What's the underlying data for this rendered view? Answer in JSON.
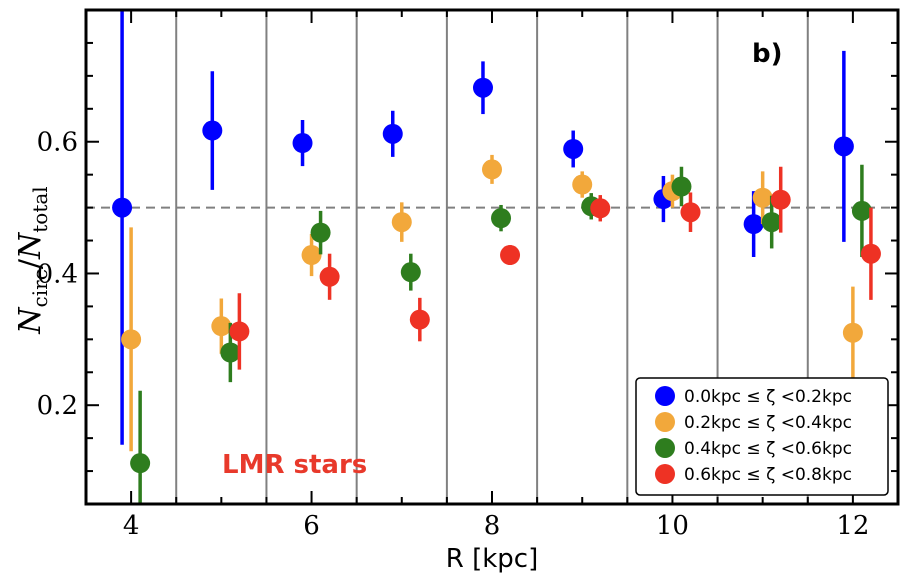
{
  "chart_data": {
    "type": "scatter",
    "panel_label": "b)",
    "xlabel": "R [kpc]",
    "ylabel_main": "N",
    "ylabel_num_sub": "circ",
    "ylabel_sep": "/",
    "ylabel_den_sub": "total",
    "annotation": "LMR stars",
    "annotation_color": "#e8392b",
    "xlim": [
      3.5,
      12.5
    ],
    "ylim": [
      0.05,
      0.8
    ],
    "x_ticks": [
      4,
      6,
      8,
      10,
      12
    ],
    "x_tick_labels": [
      "4",
      "6",
      "8",
      "10",
      "12"
    ],
    "y_ticks": [
      0.2,
      0.4,
      0.6
    ],
    "y_tick_labels": [
      "0.2",
      "0.4",
      "0.6"
    ],
    "reference_line": 0.5,
    "bin_edges": [
      4.5,
      5.5,
      6.5,
      7.5,
      8.5,
      9.5,
      10.5,
      11.5
    ],
    "legend_position": "lower-right",
    "series": [
      {
        "name": "0.0kpc ≤ ζ <0.2kpc",
        "color": "#0000ff",
        "x": [
          3.9,
          4.9,
          5.9,
          6.9,
          7.9,
          8.9,
          9.9,
          10.9,
          11.9
        ],
        "y": [
          0.5,
          0.617,
          0.598,
          0.612,
          0.682,
          0.589,
          0.513,
          0.475,
          0.593
        ],
        "err": [
          0.36,
          0.09,
          0.035,
          0.035,
          0.04,
          0.028,
          0.035,
          0.05,
          0.145
        ]
      },
      {
        "name": "0.2kpc ≤ ζ <0.4kpc",
        "color": "#f2a83b",
        "x": [
          4.0,
          5.0,
          6.0,
          7.0,
          8.0,
          9.0,
          10.0,
          11.0,
          12.0
        ],
        "y": [
          0.3,
          0.32,
          0.428,
          0.478,
          0.558,
          0.535,
          0.525,
          0.515,
          0.31
        ],
        "err": [
          0.17,
          0.042,
          0.032,
          0.03,
          0.022,
          0.02,
          0.025,
          0.04,
          0.07
        ]
      },
      {
        "name": "0.4kpc ≤ ζ <0.6kpc",
        "color": "#2e7d1e",
        "x": [
          4.1,
          5.1,
          6.1,
          7.1,
          8.1,
          9.1,
          10.1,
          11.1,
          12.1
        ],
        "y": [
          0.112,
          0.28,
          0.462,
          0.402,
          0.484,
          0.502,
          0.532,
          0.478,
          0.495
        ],
        "err": [
          0.11,
          0.045,
          0.033,
          0.028,
          0.02,
          0.02,
          0.03,
          0.04,
          0.07
        ]
      },
      {
        "name": "0.6kpc ≤ ζ <0.8kpc",
        "color": "#ee3224",
        "x": [
          4.2,
          5.2,
          6.2,
          7.2,
          8.2,
          9.2,
          10.2,
          11.2,
          12.2
        ],
        "y": [
          null,
          0.312,
          0.395,
          0.33,
          0.428,
          0.499,
          0.493,
          0.512,
          0.43
        ],
        "err": [
          null,
          0.058,
          0.035,
          0.033,
          0.015,
          0.02,
          0.03,
          0.05,
          0.07
        ]
      }
    ]
  }
}
